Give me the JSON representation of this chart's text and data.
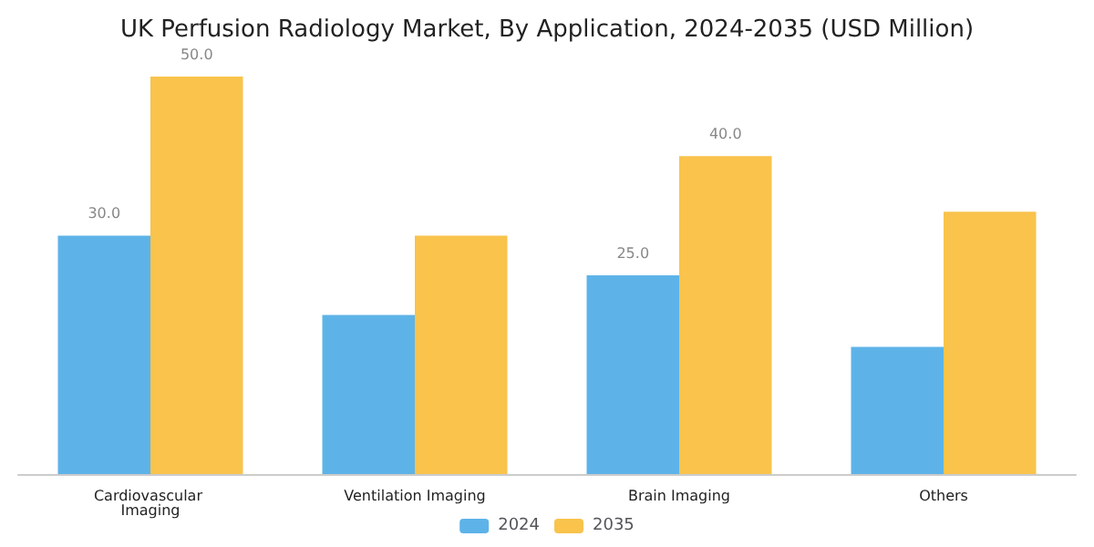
{
  "chart_data": {
    "type": "bar",
    "title": "UK Perfusion Radiology Market, By Application, 2024-2035 (USD Million)",
    "categories": [
      "Cardiovascular Imaging",
      "Ventilation Imaging",
      "Brain Imaging",
      "Others"
    ],
    "series": [
      {
        "name": "2024",
        "color": "#5db3e8",
        "values": [
          30,
          20,
          25,
          16
        ],
        "value_labels": [
          "30.0",
          null,
          "25.0",
          null
        ]
      },
      {
        "name": "2035",
        "color": "#f9c34c",
        "values": [
          50,
          30,
          40,
          33
        ],
        "value_labels": [
          "50.0",
          null,
          "40.0",
          null
        ]
      }
    ],
    "legend": "bottom"
  }
}
